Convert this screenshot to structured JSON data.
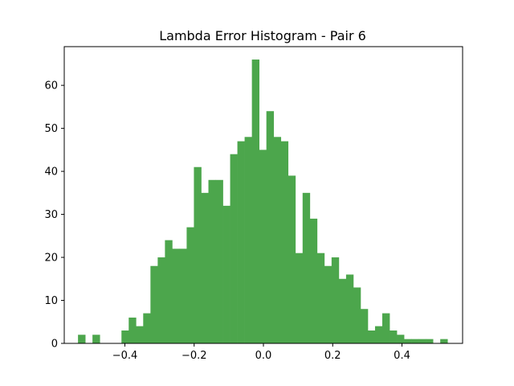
{
  "chart_data": {
    "type": "bar",
    "title": "Lambda Error Histogram - Pair 6",
    "xlabel": "",
    "ylabel": "",
    "xlim": [
      -0.575,
      0.575
    ],
    "ylim": [
      0,
      69
    ],
    "grid": false,
    "bar_color": "#4ca64c",
    "xticks": [
      -0.4,
      -0.2,
      0.0,
      0.2,
      0.4
    ],
    "xtick_labels": [
      "−0.4",
      "−0.2",
      "0.0",
      "0.2",
      "0.4"
    ],
    "yticks": [
      0,
      10,
      20,
      30,
      40,
      50,
      60
    ],
    "ytick_labels": [
      "0",
      "10",
      "20",
      "30",
      "40",
      "50",
      "60"
    ],
    "bins": [
      {
        "x0": -0.5353,
        "x1": -0.5144,
        "count": 2
      },
      {
        "x0": -0.5144,
        "x1": -0.4935,
        "count": 0
      },
      {
        "x0": -0.4935,
        "x1": -0.4725,
        "count": 2
      },
      {
        "x0": -0.4725,
        "x1": -0.4516,
        "count": 0
      },
      {
        "x0": -0.4516,
        "x1": -0.4307,
        "count": 0
      },
      {
        "x0": -0.4307,
        "x1": -0.4098,
        "count": 0
      },
      {
        "x0": -0.4098,
        "x1": -0.3889,
        "count": 3
      },
      {
        "x0": -0.3889,
        "x1": -0.368,
        "count": 6
      },
      {
        "x0": -0.368,
        "x1": -0.3471,
        "count": 4
      },
      {
        "x0": -0.3471,
        "x1": -0.3261,
        "count": 7
      },
      {
        "x0": -0.3261,
        "x1": -0.3052,
        "count": 18
      },
      {
        "x0": -0.3052,
        "x1": -0.2843,
        "count": 20
      },
      {
        "x0": -0.2843,
        "x1": -0.2634,
        "count": 24
      },
      {
        "x0": -0.2634,
        "x1": -0.2425,
        "count": 22
      },
      {
        "x0": -0.2425,
        "x1": -0.2216,
        "count": 22
      },
      {
        "x0": -0.2216,
        "x1": -0.2007,
        "count": 27
      },
      {
        "x0": -0.2007,
        "x1": -0.1797,
        "count": 41
      },
      {
        "x0": -0.1797,
        "x1": -0.1588,
        "count": 35
      },
      {
        "x0": -0.1588,
        "x1": -0.1379,
        "count": 38
      },
      {
        "x0": -0.1379,
        "x1": -0.117,
        "count": 38
      },
      {
        "x0": -0.117,
        "x1": -0.0961,
        "count": 32
      },
      {
        "x0": -0.0961,
        "x1": -0.0752,
        "count": 44
      },
      {
        "x0": -0.0752,
        "x1": -0.0543,
        "count": 47
      },
      {
        "x0": -0.0543,
        "x1": -0.0333,
        "count": 48
      },
      {
        "x0": -0.0333,
        "x1": -0.0124,
        "count": 66
      },
      {
        "x0": -0.0124,
        "x1": 0.0085,
        "count": 45
      },
      {
        "x0": 0.0085,
        "x1": 0.0294,
        "count": 54
      },
      {
        "x0": 0.0294,
        "x1": 0.0503,
        "count": 48
      },
      {
        "x0": 0.0503,
        "x1": 0.0712,
        "count": 47
      },
      {
        "x0": 0.0712,
        "x1": 0.0922,
        "count": 39
      },
      {
        "x0": 0.0922,
        "x1": 0.1131,
        "count": 21
      },
      {
        "x0": 0.1131,
        "x1": 0.134,
        "count": 35
      },
      {
        "x0": 0.134,
        "x1": 0.1549,
        "count": 29
      },
      {
        "x0": 0.1549,
        "x1": 0.1758,
        "count": 21
      },
      {
        "x0": 0.1758,
        "x1": 0.1967,
        "count": 18
      },
      {
        "x0": 0.1967,
        "x1": 0.2176,
        "count": 20
      },
      {
        "x0": 0.2176,
        "x1": 0.2386,
        "count": 15
      },
      {
        "x0": 0.2386,
        "x1": 0.2595,
        "count": 16
      },
      {
        "x0": 0.2595,
        "x1": 0.2804,
        "count": 13
      },
      {
        "x0": 0.2804,
        "x1": 0.3013,
        "count": 8
      },
      {
        "x0": 0.3013,
        "x1": 0.3222,
        "count": 3
      },
      {
        "x0": 0.3222,
        "x1": 0.3431,
        "count": 4
      },
      {
        "x0": 0.3431,
        "x1": 0.3641,
        "count": 7
      },
      {
        "x0": 0.3641,
        "x1": 0.385,
        "count": 3
      },
      {
        "x0": 0.385,
        "x1": 0.4059,
        "count": 2
      },
      {
        "x0": 0.4059,
        "x1": 0.4268,
        "count": 1
      },
      {
        "x0": 0.4268,
        "x1": 0.4477,
        "count": 1
      },
      {
        "x0": 0.4477,
        "x1": 0.4686,
        "count": 1
      },
      {
        "x0": 0.4686,
        "x1": 0.4895,
        "count": 1
      },
      {
        "x0": 0.4895,
        "x1": 0.5105,
        "count": 0
      },
      {
        "x0": 0.5105,
        "x1": 0.5314,
        "count": 1
      }
    ]
  }
}
